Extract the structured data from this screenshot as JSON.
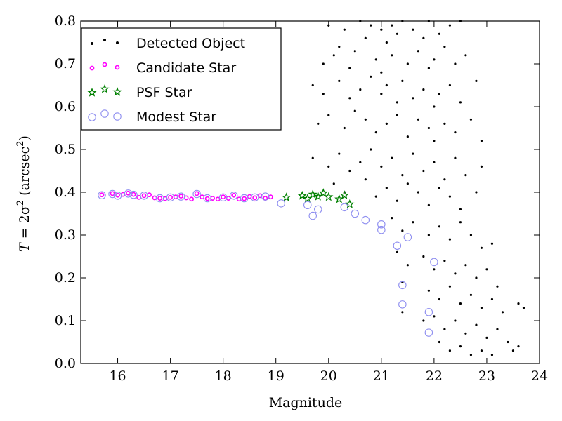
{
  "chart_data": {
    "type": "scatter",
    "xlabel": "Magnitude",
    "ylabel_main": "T",
    "ylabel_eq": " = 2σ",
    "ylabel_sup": "2",
    "ylabel_unit": " (arcsec",
    "ylabel_unit_sup": "2",
    "ylabel_close": ")",
    "xlim": [
      15.3,
      24.0
    ],
    "ylim": [
      0.0,
      0.8
    ],
    "xticks": [
      16,
      17,
      18,
      19,
      20,
      21,
      22,
      23,
      24
    ],
    "yticks": [
      0.0,
      0.1,
      0.2,
      0.3,
      0.4,
      0.5,
      0.6,
      0.7,
      0.8
    ],
    "xtick_labels": [
      "16",
      "17",
      "18",
      "19",
      "20",
      "21",
      "22",
      "23",
      "24"
    ],
    "ytick_labels": [
      "0.0",
      "0.1",
      "0.2",
      "0.3",
      "0.4",
      "0.5",
      "0.6",
      "0.7",
      "0.8"
    ],
    "grid": false,
    "legend_position": "top-left",
    "colors": {
      "detected": "#000000",
      "candidate": "#ff00ff",
      "psf": "#008000",
      "modest": "#8f8ff0"
    },
    "series": [
      {
        "name": "Detected Object",
        "key": "detected",
        "marker": "dot",
        "points": [
          [
            20.0,
            0.79
          ],
          [
            20.2,
            0.74
          ],
          [
            20.3,
            0.78
          ],
          [
            20.6,
            0.8
          ],
          [
            20.7,
            0.76
          ],
          [
            20.8,
            0.79
          ],
          [
            21.0,
            0.78
          ],
          [
            21.1,
            0.75
          ],
          [
            21.2,
            0.79
          ],
          [
            21.3,
            0.77
          ],
          [
            21.4,
            0.8
          ],
          [
            21.6,
            0.78
          ],
          [
            21.8,
            0.76
          ],
          [
            21.9,
            0.8
          ],
          [
            22.1,
            0.77
          ],
          [
            22.3,
            0.79
          ],
          [
            22.5,
            0.8
          ],
          [
            19.9,
            0.7
          ],
          [
            20.1,
            0.72
          ],
          [
            20.4,
            0.69
          ],
          [
            20.5,
            0.73
          ],
          [
            20.9,
            0.71
          ],
          [
            21.0,
            0.68
          ],
          [
            21.2,
            0.72
          ],
          [
            21.5,
            0.7
          ],
          [
            21.7,
            0.73
          ],
          [
            21.9,
            0.69
          ],
          [
            22.0,
            0.71
          ],
          [
            22.2,
            0.74
          ],
          [
            22.4,
            0.7
          ],
          [
            22.6,
            0.72
          ],
          [
            19.7,
            0.65
          ],
          [
            19.9,
            0.63
          ],
          [
            20.2,
            0.66
          ],
          [
            20.4,
            0.62
          ],
          [
            20.6,
            0.64
          ],
          [
            20.8,
            0.67
          ],
          [
            21.0,
            0.63
          ],
          [
            21.1,
            0.65
          ],
          [
            21.3,
            0.61
          ],
          [
            21.4,
            0.66
          ],
          [
            21.6,
            0.62
          ],
          [
            21.8,
            0.64
          ],
          [
            22.0,
            0.6
          ],
          [
            22.1,
            0.63
          ],
          [
            22.3,
            0.65
          ],
          [
            22.5,
            0.61
          ],
          [
            22.8,
            0.66
          ],
          [
            19.8,
            0.56
          ],
          [
            20.0,
            0.58
          ],
          [
            20.3,
            0.55
          ],
          [
            20.5,
            0.59
          ],
          [
            20.7,
            0.57
          ],
          [
            20.9,
            0.54
          ],
          [
            21.1,
            0.56
          ],
          [
            21.3,
            0.58
          ],
          [
            21.5,
            0.53
          ],
          [
            21.7,
            0.57
          ],
          [
            21.9,
            0.55
          ],
          [
            22.0,
            0.52
          ],
          [
            22.2,
            0.56
          ],
          [
            22.4,
            0.54
          ],
          [
            22.7,
            0.57
          ],
          [
            22.9,
            0.52
          ],
          [
            19.7,
            0.48
          ],
          [
            20.0,
            0.46
          ],
          [
            20.2,
            0.49
          ],
          [
            20.4,
            0.45
          ],
          [
            20.6,
            0.47
          ],
          [
            20.8,
            0.5
          ],
          [
            21.0,
            0.46
          ],
          [
            21.2,
            0.48
          ],
          [
            21.4,
            0.44
          ],
          [
            21.6,
            0.49
          ],
          [
            21.8,
            0.45
          ],
          [
            22.0,
            0.47
          ],
          [
            22.2,
            0.43
          ],
          [
            22.4,
            0.48
          ],
          [
            22.6,
            0.44
          ],
          [
            22.9,
            0.46
          ],
          [
            20.1,
            0.42
          ],
          [
            20.3,
            0.4
          ],
          [
            20.7,
            0.43
          ],
          [
            20.9,
            0.39
          ],
          [
            21.1,
            0.41
          ],
          [
            21.3,
            0.38
          ],
          [
            21.5,
            0.42
          ],
          [
            21.7,
            0.4
          ],
          [
            21.9,
            0.37
          ],
          [
            22.1,
            0.41
          ],
          [
            22.3,
            0.39
          ],
          [
            22.5,
            0.36
          ],
          [
            22.8,
            0.4
          ],
          [
            21.2,
            0.34
          ],
          [
            21.4,
            0.31
          ],
          [
            21.6,
            0.33
          ],
          [
            21.9,
            0.3
          ],
          [
            22.1,
            0.32
          ],
          [
            22.3,
            0.29
          ],
          [
            22.5,
            0.33
          ],
          [
            22.7,
            0.3
          ],
          [
            22.9,
            0.27
          ],
          [
            23.1,
            0.28
          ],
          [
            21.3,
            0.26
          ],
          [
            21.5,
            0.23
          ],
          [
            21.8,
            0.25
          ],
          [
            22.0,
            0.22
          ],
          [
            22.2,
            0.24
          ],
          [
            22.4,
            0.21
          ],
          [
            22.6,
            0.23
          ],
          [
            22.8,
            0.2
          ],
          [
            23.0,
            0.22
          ],
          [
            23.2,
            0.18
          ],
          [
            21.4,
            0.19
          ],
          [
            21.9,
            0.17
          ],
          [
            22.1,
            0.15
          ],
          [
            22.3,
            0.18
          ],
          [
            22.5,
            0.14
          ],
          [
            22.7,
            0.16
          ],
          [
            22.9,
            0.13
          ],
          [
            23.1,
            0.15
          ],
          [
            23.3,
            0.12
          ],
          [
            21.4,
            0.12
          ],
          [
            21.8,
            0.1
          ],
          [
            22.0,
            0.11
          ],
          [
            22.2,
            0.08
          ],
          [
            22.4,
            0.1
          ],
          [
            22.6,
            0.07
          ],
          [
            22.8,
            0.09
          ],
          [
            23.0,
            0.06
          ],
          [
            23.2,
            0.08
          ],
          [
            23.4,
            0.05
          ],
          [
            22.1,
            0.05
          ],
          [
            22.3,
            0.03
          ],
          [
            22.5,
            0.04
          ],
          [
            22.7,
            0.02
          ],
          [
            22.9,
            0.03
          ],
          [
            23.1,
            0.02
          ],
          [
            23.5,
            0.03
          ],
          [
            23.6,
            0.04
          ],
          [
            23.7,
            0.13
          ],
          [
            23.6,
            0.14
          ]
        ]
      },
      {
        "name": "Candidate Star",
        "key": "candidate",
        "marker": "small-circle",
        "points": [
          [
            15.7,
            0.394
          ],
          [
            15.9,
            0.397
          ],
          [
            16.0,
            0.393
          ],
          [
            16.1,
            0.395
          ],
          [
            16.2,
            0.398
          ],
          [
            16.3,
            0.395
          ],
          [
            16.4,
            0.388
          ],
          [
            16.5,
            0.392
          ],
          [
            16.6,
            0.394
          ],
          [
            16.7,
            0.387
          ],
          [
            16.8,
            0.386
          ],
          [
            16.9,
            0.385
          ],
          [
            17.0,
            0.388
          ],
          [
            17.1,
            0.389
          ],
          [
            17.2,
            0.391
          ],
          [
            17.3,
            0.387
          ],
          [
            17.4,
            0.384
          ],
          [
            17.5,
            0.397
          ],
          [
            17.6,
            0.389
          ],
          [
            17.7,
            0.385
          ],
          [
            17.8,
            0.386
          ],
          [
            17.9,
            0.384
          ],
          [
            18.0,
            0.389
          ],
          [
            18.1,
            0.386
          ],
          [
            18.2,
            0.393
          ],
          [
            18.3,
            0.384
          ],
          [
            18.4,
            0.385
          ],
          [
            18.5,
            0.39
          ],
          [
            18.6,
            0.387
          ],
          [
            18.7,
            0.392
          ],
          [
            18.8,
            0.386
          ],
          [
            18.9,
            0.389
          ]
        ]
      },
      {
        "name": "PSF Star",
        "key": "psf",
        "marker": "star",
        "points": [
          [
            19.2,
            0.388
          ],
          [
            19.5,
            0.392
          ],
          [
            19.6,
            0.385
          ],
          [
            19.7,
            0.395
          ],
          [
            19.8,
            0.39
          ],
          [
            19.9,
            0.398
          ],
          [
            20.0,
            0.389
          ],
          [
            20.2,
            0.384
          ],
          [
            20.3,
            0.393
          ],
          [
            20.4,
            0.372
          ]
        ]
      },
      {
        "name": "Modest Star",
        "key": "modest",
        "marker": "ring",
        "points": [
          [
            15.7,
            0.393
          ],
          [
            15.9,
            0.396
          ],
          [
            16.0,
            0.392
          ],
          [
            16.2,
            0.397
          ],
          [
            16.3,
            0.394
          ],
          [
            16.5,
            0.392
          ],
          [
            16.8,
            0.386
          ],
          [
            17.0,
            0.388
          ],
          [
            17.2,
            0.39
          ],
          [
            17.5,
            0.396
          ],
          [
            17.7,
            0.386
          ],
          [
            18.0,
            0.388
          ],
          [
            18.2,
            0.392
          ],
          [
            18.4,
            0.386
          ],
          [
            18.6,
            0.388
          ],
          [
            18.8,
            0.39
          ],
          [
            19.1,
            0.374
          ],
          [
            19.6,
            0.37
          ],
          [
            19.7,
            0.345
          ],
          [
            19.8,
            0.36
          ],
          [
            20.3,
            0.365
          ],
          [
            20.5,
            0.35
          ],
          [
            20.7,
            0.335
          ],
          [
            21.0,
            0.325
          ],
          [
            21.0,
            0.312
          ],
          [
            21.3,
            0.275
          ],
          [
            21.5,
            0.295
          ],
          [
            22.0,
            0.237
          ],
          [
            21.4,
            0.183
          ],
          [
            21.4,
            0.138
          ],
          [
            21.9,
            0.12
          ],
          [
            21.9,
            0.072
          ]
        ]
      }
    ]
  }
}
